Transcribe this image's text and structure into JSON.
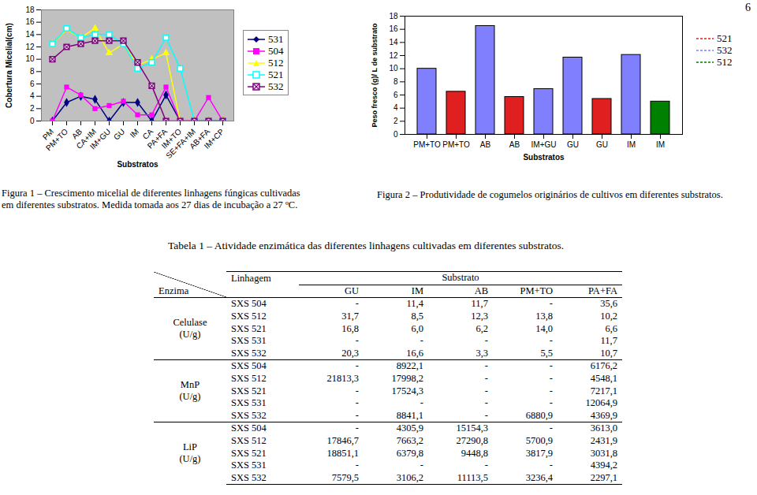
{
  "chart_data": [
    {
      "type": "line",
      "x_label": "Substratos",
      "y_label": "Cobertura Micelial(cm)",
      "categories": [
        "PM",
        "PM+TO",
        "AB",
        "CA+IM",
        "IM+GU",
        "GU",
        "IM",
        "CA",
        "PA+FA",
        "IM+TO",
        "SE+FA+IM",
        "AB+FA",
        "IM+CP"
      ],
      "series": [
        {
          "name": "531",
          "color": "#000080",
          "marker": "diamond",
          "values": [
            0,
            3,
            4,
            3.5,
            0,
            3,
            3,
            0,
            4.2,
            0,
            0,
            0,
            0
          ]
        },
        {
          "name": "504",
          "color": "#ff00ff",
          "marker": "square",
          "values": [
            0,
            5.5,
            4.2,
            2,
            2.5,
            3.2,
            1,
            1,
            5.5,
            0,
            0,
            3.8,
            0
          ]
        },
        {
          "name": "512",
          "color": "#ffff00",
          "marker": "triangle",
          "values": [
            12.5,
            14.8,
            13.5,
            15,
            11,
            12.5,
            9,
            10,
            11,
            0,
            0,
            0,
            0
          ]
        },
        {
          "name": "521",
          "color": "#00ffff",
          "marker": "square_open",
          "values": [
            12.5,
            15,
            13.5,
            14,
            14,
            12.5,
            8.5,
            9.5,
            13.5,
            8.5,
            0,
            0,
            0
          ]
        },
        {
          "name": "532",
          "color": "#800080",
          "marker": "square_x",
          "values": [
            10,
            12,
            12.5,
            13,
            13,
            13,
            9.5,
            5.7,
            0,
            0,
            0,
            0,
            0
          ]
        }
      ],
      "ylim": [
        0,
        18
      ],
      "yticks": [
        0,
        2,
        4,
        6,
        8,
        10,
        12,
        14,
        16,
        18
      ],
      "grid": false,
      "legend": "right"
    },
    {
      "type": "bar",
      "x_label": "Substratos",
      "y_label": "Peso fresco (g)/ L de substrato",
      "categories": [
        "PM+TO",
        "PM+TO",
        "AB",
        "AB",
        "IM+GU",
        "GU",
        "GU",
        "IM",
        "IM"
      ],
      "series": [
        {
          "name": "521",
          "color": "#e02020",
          "values": [
            null,
            6.5,
            null,
            5.7,
            null,
            null,
            5.4,
            null,
            null
          ]
        },
        {
          "name": "532",
          "color": "#8080ff",
          "values": [
            10,
            null,
            16.5,
            null,
            6.9,
            11.7,
            null,
            12.1,
            null
          ]
        },
        {
          "name": "512",
          "color": "#008000",
          "values": [
            null,
            null,
            null,
            null,
            null,
            null,
            null,
            null,
            5
          ]
        }
      ],
      "ylim": [
        0,
        18
      ],
      "yticks": [
        0,
        2,
        4,
        6,
        8,
        10,
        12,
        14,
        16,
        18
      ],
      "grid": false,
      "legend": "right"
    }
  ],
  "document": {
    "page_number": "6",
    "figure_captions": [
      "Figura 1 – Crescimento micelial de diferentes linhagens fúngicas cultivadas em diferentes substratos. Medida tomada aos 27 dias de incubação a 27 ºC.",
      "Figura 2 – Produtividade de cogumelos originários de cultivos em diferentes substratos."
    ],
    "table": {
      "title": "Tabela 1 – Atividade enzimática das diferentes linhagens cultivadas em diferentes substratos.",
      "corner": "Enzima",
      "row_header": "Linhagem",
      "column_group": "Substrato",
      "columns": [
        "GU",
        "IM",
        "AB",
        "PM+TO",
        "PA+FA"
      ],
      "groups": [
        {
          "enzyme": "Celulase",
          "unit": "(U/g)",
          "rows": [
            [
              "SXS 504",
              "-",
              "11,4",
              "11,7",
              "-",
              "35,6"
            ],
            [
              "SXS 512",
              "31,7",
              "8,5",
              "12,3",
              "13,8",
              "10,2"
            ],
            [
              "SXS 521",
              "16,8",
              "6,0",
              "6,2",
              "14,0",
              "6,6"
            ],
            [
              "SXS 531",
              "-",
              "-",
              "-",
              "-",
              "11,7"
            ],
            [
              "SXS 532",
              "20,3",
              "16,6",
              "3,3",
              "5,5",
              "10,7"
            ]
          ]
        },
        {
          "enzyme": "MnP",
          "unit": "(U/g)",
          "rows": [
            [
              "SXS 504",
              "-",
              "8922,1",
              "-",
              "-",
              "6176,2"
            ],
            [
              "SXS 512",
              "21813,3",
              "17998,2",
              "-",
              "-",
              "4548,1"
            ],
            [
              "SXS 521",
              "-",
              "17524,3",
              "-",
              "-",
              "7217,1"
            ],
            [
              "SXS 531",
              "-",
              "-",
              "-",
              "-",
              "12064,9"
            ],
            [
              "SXS 532",
              "-",
              "8841,1",
              "-",
              "6880,9",
              "4369,9"
            ]
          ]
        },
        {
          "enzyme": "LiP",
          "unit": "(U/g)",
          "rows": [
            [
              "SXS 504",
              "-",
              "4305,9",
              "15154,3",
              "-",
              "3613,0"
            ],
            [
              "SXS 512",
              "17846,7",
              "7663,2",
              "27290,8",
              "5700,9",
              "2431,9"
            ],
            [
              "SXS 521",
              "18851,1",
              "6379,8",
              "9448,8",
              "3817,9",
              "3031,8"
            ],
            [
              "SXS 531",
              "-",
              "-",
              "-",
              "-",
              "4394,2"
            ],
            [
              "SXS 532",
              "7579,5",
              "3106,2",
              "11113,5",
              "3236,4",
              "2297,1"
            ]
          ]
        }
      ]
    }
  }
}
